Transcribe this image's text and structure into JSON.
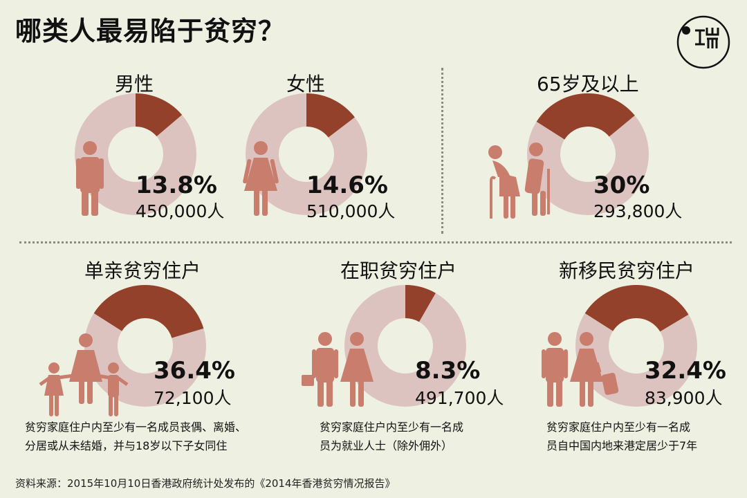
{
  "title": "哪类人最易陷于贫穷？",
  "logo": {
    "icon": "logo-icon"
  },
  "colors": {
    "ring": "#dcc3bf",
    "highlight": "#93412a",
    "figure": "#c97d6c",
    "background": "#eef0e2"
  },
  "panels": [
    {
      "label": "男性",
      "percent": "13.8%",
      "fraction": 0.138,
      "count": "450,000人",
      "figure": "man-figure-icon"
    },
    {
      "label": "女性",
      "percent": "14.6%",
      "fraction": 0.146,
      "count": "510,000人",
      "figure": "woman-figure-icon"
    },
    {
      "label": "65岁及以上",
      "percent": "30%",
      "fraction": 0.3,
      "count": "293,800人",
      "figure": "elderly-couple-icon"
    },
    {
      "label": "单亲贫穷住户",
      "percent": "36.4%",
      "fraction": 0.364,
      "count": "72,100人",
      "figure": "single-parent-family-icon",
      "note": [
        "贫穷家庭住户内至少有一名成员丧偶、离婚、",
        "分居或从未结婚，并与18岁以下子女同住"
      ]
    },
    {
      "label": "在职贫穷住户",
      "percent": "8.3%",
      "fraction": 0.083,
      "count": "491,700人",
      "figure": "working-couple-icon",
      "note": [
        "贫穷家庭住户内至少有一名成",
        "员为就业人士（除外佣外）"
      ]
    },
    {
      "label": "新移民贫穷住户",
      "percent": "32.4%",
      "fraction": 0.324,
      "count": "83,900人",
      "figure": "immigrant-couple-icon",
      "note": [
        "贫穷家庭住户内至少有一名成",
        "员自中国内地来港定居少于7年"
      ]
    }
  ],
  "footer": "资料来源：2015年10月10日香港政府统计处发布的《2014年香港贫穷情况报告》"
}
